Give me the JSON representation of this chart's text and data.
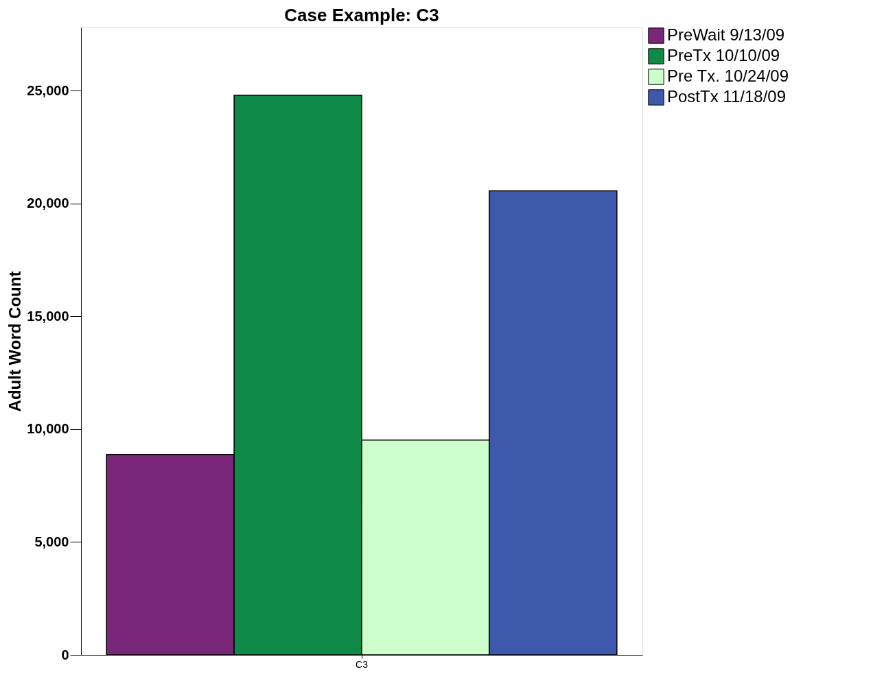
{
  "chart_data": {
    "type": "bar",
    "title": "Case Example: C3",
    "ylabel": "Adult Word Count",
    "categories": [
      "C3"
    ],
    "series": [
      {
        "name": "PreWait 9/13/09",
        "color": "#7b2779",
        "values": [
          8880
        ]
      },
      {
        "name": "PreTx 10/10/09",
        "color": "#0f8a46",
        "values": [
          24790
        ]
      },
      {
        "name": "Pre Tx. 10/24/09",
        "color": "#ccffcc",
        "values": [
          9520
        ]
      },
      {
        "name": "PostTx 11/18/09",
        "color": "#3e58ac",
        "values": [
          20560
        ]
      }
    ],
    "ylim": [
      0,
      27800
    ],
    "yticks": [
      {
        "value": 0,
        "label": "0"
      },
      {
        "value": 5000,
        "label": "5,000"
      },
      {
        "value": 10000,
        "label": "10,000"
      },
      {
        "value": 15000,
        "label": "15,000"
      },
      {
        "value": 20000,
        "label": "20,000"
      },
      {
        "value": 25000,
        "label": "25,000"
      }
    ],
    "grid": false,
    "legend": "right"
  }
}
